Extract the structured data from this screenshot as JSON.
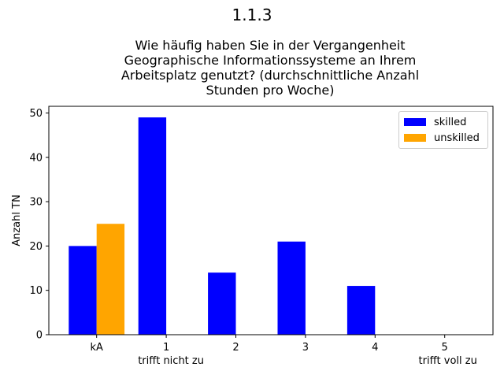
{
  "chart_data": {
    "type": "bar",
    "suptitle": "1.1.3",
    "title": "Wie häufig haben Sie in der Vergangenheit\nGeographische Informationssysteme an Ihrem\nArbeitsplatz genutzt? (durchschnittliche Anzahl\nStunden pro Woche)",
    "xlabel": "",
    "ylabel": "Anzahl TN",
    "categories": [
      "kA",
      "1",
      "2",
      "3",
      "4",
      "5"
    ],
    "category_sublabels": {
      "1": "trifft nicht zu",
      "5": "trifft voll zu"
    },
    "series": [
      {
        "name": "skilled",
        "color": "#0000ff",
        "values": [
          20,
          49,
          14,
          21,
          11,
          0
        ]
      },
      {
        "name": "unskilled",
        "color": "#ffa500",
        "values": [
          25,
          0,
          0,
          0,
          0,
          0
        ]
      }
    ],
    "ylim": [
      0,
      51.5
    ],
    "yticks": [
      0,
      10,
      20,
      30,
      40,
      50
    ],
    "grid": false,
    "legend_position": "top-right"
  }
}
